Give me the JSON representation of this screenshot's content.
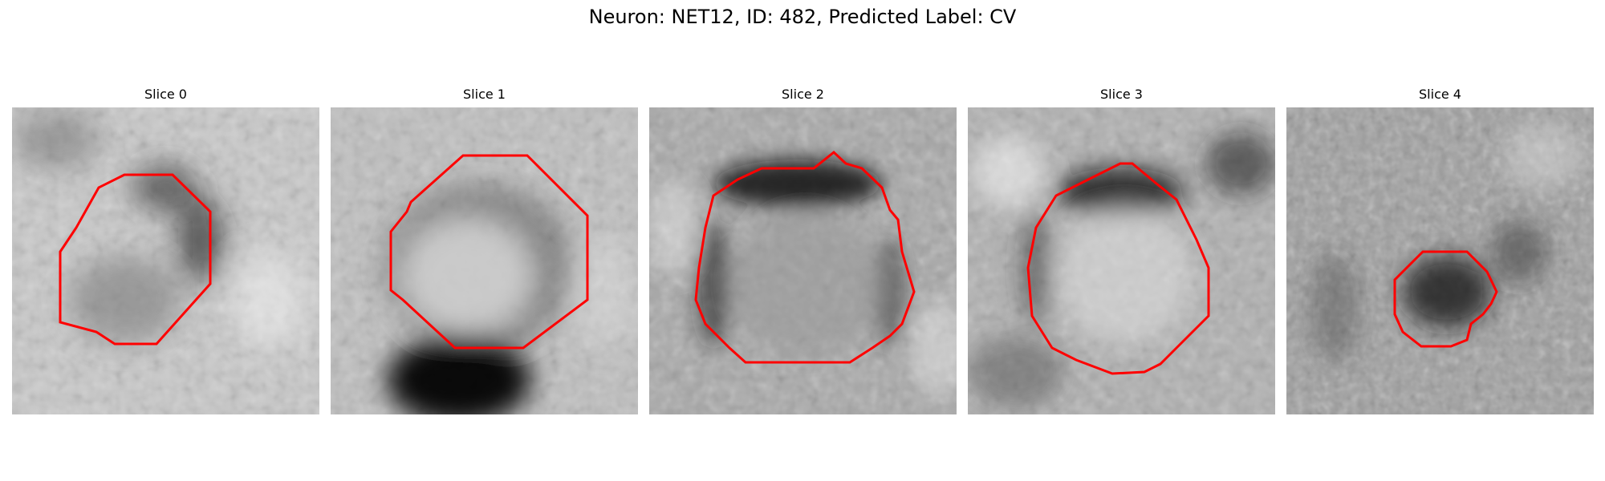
{
  "figure": {
    "title": "Neuron: NET12, ID: 482, Predicted Label: CV"
  },
  "contour_color": "#ff0000",
  "panels": [
    {
      "title": "Slice 0"
    },
    {
      "title": "Slice 1"
    },
    {
      "title": "Slice 2"
    },
    {
      "title": "Slice 3"
    },
    {
      "title": "Slice 4"
    }
  ]
}
